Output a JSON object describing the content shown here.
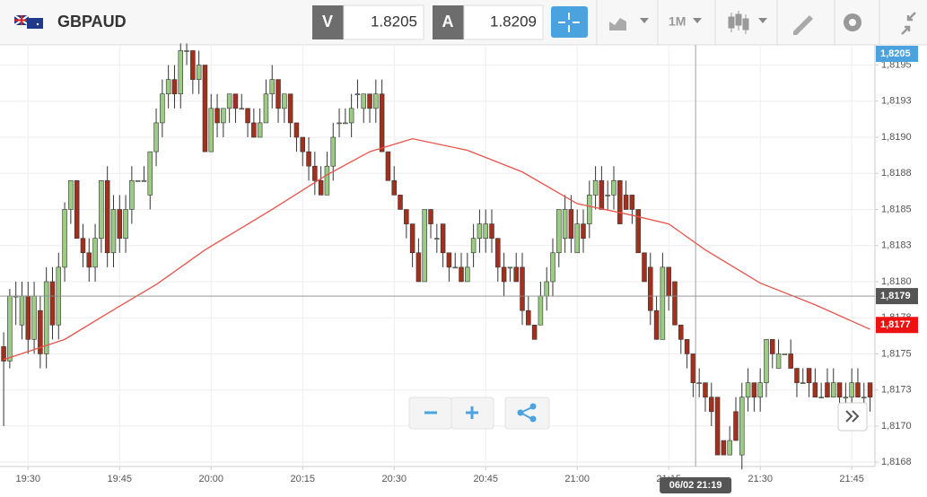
{
  "toolbar": {
    "symbol": "GBPAUD",
    "bid_tag": "V",
    "bid": 1.8205,
    "ask_tag": "A",
    "ask": 1.8209,
    "timeframe": "1M"
  },
  "chart_data": {
    "type": "candlestick",
    "up_color": "#9ccc84",
    "down_color": "#a2301d",
    "xlim": [
      1165.4,
      1308.8
    ],
    "ylim": [
      1.81672,
      1.81964
    ],
    "grid": true,
    "xticks": [
      {
        "value": 1170,
        "label": "19:30"
      },
      {
        "value": 1185,
        "label": "19:45"
      },
      {
        "value": 1200,
        "label": "20:00"
      },
      {
        "value": 1215,
        "label": "20:15"
      },
      {
        "value": 1230,
        "label": "20:30"
      },
      {
        "value": 1245,
        "label": "20:45"
      },
      {
        "value": 1260,
        "label": "21:00"
      },
      {
        "value": 1275,
        "label": "21:15"
      },
      {
        "value": 1290,
        "label": "21:30"
      },
      {
        "value": 1305,
        "label": "21:45"
      }
    ],
    "yticks": [
      {
        "value": 1.8195,
        "label": "1,8195"
      },
      {
        "value": 1.81925,
        "label": "1,8193"
      },
      {
        "value": 1.819,
        "label": "1,8190"
      },
      {
        "value": 1.81875,
        "label": "1,8188"
      },
      {
        "value": 1.8185,
        "label": "1,8185"
      },
      {
        "value": 1.81825,
        "label": "1,8183"
      },
      {
        "value": 1.818,
        "label": "1,8180"
      },
      {
        "value": 1.81775,
        "label": "1,8178"
      },
      {
        "value": 1.8175,
        "label": "1,8175"
      },
      {
        "value": 1.81725,
        "label": "1,8173"
      },
      {
        "value": 1.817,
        "label": "1,8170"
      },
      {
        "value": 1.81675,
        "label": "1,8168"
      }
    ],
    "x": [
      1166,
      1167,
      1168,
      1169,
      1170,
      1171,
      1172,
      1173,
      1174,
      1175,
      1176,
      1177,
      1178,
      1179,
      1180,
      1181,
      1182,
      1183,
      1184,
      1185,
      1186,
      1187,
      1188,
      1189,
      1190,
      1191,
      1192,
      1193,
      1194,
      1195,
      1196,
      1197,
      1198,
      1199,
      1200,
      1201,
      1202,
      1203,
      1204,
      1205,
      1206,
      1207,
      1208,
      1209,
      1210,
      1211,
      1212,
      1213,
      1214,
      1215,
      1216,
      1217,
      1218,
      1219,
      1220,
      1221,
      1222,
      1223,
      1224,
      1225,
      1226,
      1227,
      1228,
      1229,
      1230,
      1231,
      1232,
      1233,
      1234,
      1235,
      1236,
      1237,
      1238,
      1239,
      1240,
      1241,
      1242,
      1243,
      1244,
      1245,
      1246,
      1247,
      1248,
      1249,
      1250,
      1251,
      1252,
      1253,
      1254,
      1255,
      1256,
      1257,
      1258,
      1259,
      1260,
      1261,
      1262,
      1263,
      1264,
      1265,
      1266,
      1267,
      1268,
      1269,
      1270,
      1271,
      1272,
      1273,
      1274,
      1275,
      1276,
      1277,
      1278,
      1279,
      1280,
      1281,
      1282,
      1283,
      1284,
      1285,
      1286,
      1287,
      1288,
      1289,
      1290,
      1291,
      1292,
      1293,
      1294,
      1295,
      1296,
      1297,
      1298,
      1299,
      1300,
      1301,
      1302,
      1303,
      1304,
      1305,
      1306,
      1307,
      1308
    ],
    "candles": [
      [
        1.81755,
        1.81765,
        1.817,
        1.81745
      ],
      [
        1.81745,
        1.81795,
        1.8174,
        1.8179
      ],
      [
        1.8179,
        1.818,
        1.8177,
        1.8179
      ],
      [
        1.8177,
        1.818,
        1.8176,
        1.8179
      ],
      [
        1.8179,
        1.818,
        1.8175,
        1.8176
      ],
      [
        1.8176,
        1.818,
        1.8175,
        1.8179
      ],
      [
        1.8178,
        1.8179,
        1.8174,
        1.8175
      ],
      [
        1.8175,
        1.8181,
        1.8174,
        1.818
      ],
      [
        1.818,
        1.8181,
        1.8176,
        1.8177
      ],
      [
        1.8177,
        1.8182,
        1.8176,
        1.8181
      ],
      [
        1.8181,
        1.81855,
        1.818,
        1.8185
      ],
      [
        1.8185,
        1.8187,
        1.8184,
        1.8187
      ],
      [
        1.8187,
        1.8187,
        1.8183,
        1.8183
      ],
      [
        1.8183,
        1.8184,
        1.8181,
        1.8182
      ],
      [
        1.8182,
        1.8183,
        1.818,
        1.8181
      ],
      [
        1.8181,
        1.8184,
        1.818,
        1.8183
      ],
      [
        1.8183,
        1.8187,
        1.8182,
        1.8187
      ],
      [
        1.8187,
        1.8188,
        1.8181,
        1.8182
      ],
      [
        1.8182,
        1.8186,
        1.8181,
        1.8185
      ],
      [
        1.8185,
        1.8186,
        1.8182,
        1.8183
      ],
      [
        1.8183,
        1.8186,
        1.8182,
        1.8185
      ],
      [
        1.8185,
        1.8188,
        1.8184,
        1.8187
      ],
      [
        1.8187,
        1.8187,
        1.8187,
        1.8187
      ],
      [
        1.8187,
        1.8188,
        1.8187,
        1.8187
      ],
      [
        1.8186,
        1.8189,
        1.8185,
        1.8189
      ],
      [
        1.8189,
        1.8192,
        1.8188,
        1.8191
      ],
      [
        1.8191,
        1.8194,
        1.819,
        1.8193
      ],
      [
        1.8193,
        1.8195,
        1.8192,
        1.8194
      ],
      [
        1.8194,
        1.8195,
        1.8192,
        1.8193
      ],
      [
        1.8193,
        1.81965,
        1.8192,
        1.8196
      ],
      [
        1.8196,
        1.81965,
        1.8195,
        1.8196
      ],
      [
        1.8196,
        1.8196,
        1.8193,
        1.8194
      ],
      [
        1.8194,
        1.8196,
        1.8193,
        1.8195
      ],
      [
        1.8195,
        1.8195,
        1.8189,
        1.8189
      ],
      [
        1.8189,
        1.8193,
        1.8189,
        1.8192
      ],
      [
        1.8192,
        1.8193,
        1.819,
        1.8191
      ],
      [
        1.8191,
        1.8192,
        1.819,
        1.8192
      ],
      [
        1.8192,
        1.8193,
        1.8191,
        1.8193
      ],
      [
        1.8193,
        1.8193,
        1.8191,
        1.8192
      ],
      [
        1.8192,
        1.8193,
        1.8192,
        1.8192
      ],
      [
        1.8192,
        1.8192,
        1.819,
        1.8191
      ],
      [
        1.8191,
        1.8192,
        1.819,
        1.819
      ],
      [
        1.819,
        1.8192,
        1.819,
        1.8191
      ],
      [
        1.8191,
        1.8194,
        1.8191,
        1.8193
      ],
      [
        1.8193,
        1.8195,
        1.8192,
        1.8194
      ],
      [
        1.8194,
        1.8194,
        1.8191,
        1.8192
      ],
      [
        1.8192,
        1.8193,
        1.8191,
        1.8193
      ],
      [
        1.8193,
        1.8193,
        1.819,
        1.8191
      ],
      [
        1.8191,
        1.8191,
        1.8189,
        1.819
      ],
      [
        1.819,
        1.819,
        1.8188,
        1.8189
      ],
      [
        1.8189,
        1.819,
        1.8187,
        1.8188
      ],
      [
        1.8188,
        1.8189,
        1.8186,
        1.8187
      ],
      [
        1.8187,
        1.8188,
        1.8186,
        1.8186
      ],
      [
        1.8186,
        1.8189,
        1.8186,
        1.8188
      ],
      [
        1.8188,
        1.8191,
        1.8187,
        1.819
      ],
      [
        1.8191,
        1.8192,
        1.819,
        1.8191
      ],
      [
        1.8191,
        1.8192,
        1.8191,
        1.8191
      ],
      [
        1.8191,
        1.8193,
        1.819,
        1.8192
      ],
      [
        1.8193,
        1.8194,
        1.8192,
        1.8193
      ],
      [
        1.8192,
        1.8193,
        1.8191,
        1.8193
      ],
      [
        1.8193,
        1.8193,
        1.8191,
        1.8192
      ],
      [
        1.8192,
        1.8194,
        1.8191,
        1.8193
      ],
      [
        1.8193,
        1.8194,
        1.8189,
        1.8189
      ],
      [
        1.8189,
        1.8189,
        1.8187,
        1.8187
      ],
      [
        1.8187,
        1.8188,
        1.8186,
        1.8186
      ],
      [
        1.8186,
        1.8186,
        1.8185,
        1.8185
      ],
      [
        1.8185,
        1.8185,
        1.8183,
        1.8184
      ],
      [
        1.8184,
        1.8184,
        1.8181,
        1.8182
      ],
      [
        1.8182,
        1.8183,
        1.818,
        1.818
      ],
      [
        1.818,
        1.8185,
        1.818,
        1.8185
      ],
      [
        1.8185,
        1.8185,
        1.8183,
        1.8184
      ],
      [
        1.8183,
        1.8184,
        1.8182,
        1.8183
      ],
      [
        1.8184,
        1.8184,
        1.8181,
        1.8182
      ],
      [
        1.8182,
        1.8182,
        1.818,
        1.8181
      ],
      [
        1.8181,
        1.8182,
        1.8181,
        1.8181
      ],
      [
        1.8181,
        1.8182,
        1.818,
        1.818
      ],
      [
        1.818,
        1.8182,
        1.818,
        1.8181
      ],
      [
        1.8182,
        1.8184,
        1.8181,
        1.8183
      ],
      [
        1.8183,
        1.8185,
        1.8182,
        1.8184
      ],
      [
        1.8183,
        1.8185,
        1.8182,
        1.8184
      ],
      [
        1.8184,
        1.8185,
        1.8182,
        1.8183
      ],
      [
        1.8183,
        1.8183,
        1.818,
        1.8181
      ],
      [
        1.8181,
        1.8182,
        1.8179,
        1.818
      ],
      [
        1.8181,
        1.8181,
        1.818,
        1.8181
      ],
      [
        1.8181,
        1.8182,
        1.818,
        1.818
      ],
      [
        1.8181,
        1.8182,
        1.8177,
        1.8178
      ],
      [
        1.8178,
        1.8179,
        1.8177,
        1.8177
      ],
      [
        1.8177,
        1.8177,
        1.8176,
        1.8176
      ],
      [
        1.8177,
        1.818,
        1.8177,
        1.8179
      ],
      [
        1.8179,
        1.8181,
        1.8178,
        1.818
      ],
      [
        1.818,
        1.8183,
        1.8179,
        1.8182
      ],
      [
        1.8182,
        1.8185,
        1.8181,
        1.8185
      ],
      [
        1.8183,
        1.8186,
        1.8182,
        1.8185
      ],
      [
        1.8185,
        1.8186,
        1.8182,
        1.8183
      ],
      [
        1.8182,
        1.8185,
        1.8182,
        1.8184
      ],
      [
        1.8184,
        1.8185,
        1.8182,
        1.8183
      ],
      [
        1.8184,
        1.8187,
        1.8183,
        1.8186
      ],
      [
        1.8186,
        1.8188,
        1.8185,
        1.8187
      ],
      [
        1.8187,
        1.8188,
        1.8185,
        1.8185
      ],
      [
        1.8186,
        1.8187,
        1.8185,
        1.8186
      ],
      [
        1.8186,
        1.8188,
        1.8185,
        1.8187
      ],
      [
        1.8187,
        1.8187,
        1.8184,
        1.8184
      ],
      [
        1.8186,
        1.8187,
        1.8185,
        1.8185
      ],
      [
        1.8186,
        1.8186,
        1.8184,
        1.8185
      ],
      [
        1.8185,
        1.8185,
        1.8182,
        1.8182
      ],
      [
        1.8182,
        1.8182,
        1.818,
        1.818
      ],
      [
        1.8181,
        1.8182,
        1.8177,
        1.8178
      ],
      [
        1.8178,
        1.8179,
        1.8176,
        1.8176
      ],
      [
        1.8176,
        1.8182,
        1.8176,
        1.8181
      ],
      [
        1.8181,
        1.8181,
        1.8178,
        1.8179
      ],
      [
        1.818,
        1.818,
        1.8177,
        1.8177
      ],
      [
        1.8177,
        1.8177,
        1.8175,
        1.8176
      ],
      [
        1.8176,
        1.8176,
        1.8174,
        1.8175
      ],
      [
        1.8175,
        1.8175,
        1.8172,
        1.8173
      ],
      [
        1.8173,
        1.8174,
        1.8172,
        1.8173
      ],
      [
        1.8173,
        1.8173,
        1.8171,
        1.8172
      ],
      [
        1.8172,
        1.8173,
        1.817,
        1.8171
      ],
      [
        1.8172,
        1.8172,
        1.8168,
        1.8168
      ],
      [
        1.8169,
        1.8169,
        1.8168,
        1.8168
      ],
      [
        1.8168,
        1.817,
        1.8168,
        1.8169
      ],
      [
        1.8171,
        1.8172,
        1.8169,
        1.8169
      ],
      [
        1.8168,
        1.8173,
        1.8167,
        1.8172
      ],
      [
        1.8172,
        1.8174,
        1.8171,
        1.8173
      ],
      [
        1.8173,
        1.8173,
        1.8171,
        1.8172
      ],
      [
        1.8172,
        1.8174,
        1.8171,
        1.8173
      ],
      [
        1.8173,
        1.8176,
        1.8172,
        1.8176
      ],
      [
        1.8176,
        1.8176,
        1.8174,
        1.8175
      ],
      [
        1.8174,
        1.8176,
        1.8174,
        1.8175
      ],
      [
        1.8175,
        1.8175,
        1.8175,
        1.8175
      ],
      [
        1.8175,
        1.8176,
        1.8174,
        1.8174
      ],
      [
        1.8174,
        1.8174,
        1.8172,
        1.8173
      ],
      [
        1.8173,
        1.8174,
        1.8173,
        1.8173
      ],
      [
        1.8174,
        1.8174,
        1.8172,
        1.8173
      ],
      [
        1.8173,
        1.8174,
        1.8172,
        1.8172
      ],
      [
        1.8172,
        1.8173,
        1.8172,
        1.8172
      ],
      [
        1.8173,
        1.8174,
        1.8172,
        1.8172
      ],
      [
        1.8172,
        1.8174,
        1.8172,
        1.8173
      ],
      [
        1.8173,
        1.8173,
        1.8171,
        1.8172
      ],
      [
        1.8172,
        1.8173,
        1.8171,
        1.8172
      ],
      [
        1.8172,
        1.8174,
        1.8171,
        1.8173
      ],
      [
        1.8173,
        1.8174,
        1.8172,
        1.8172
      ],
      [
        1.8172,
        1.8173,
        1.8171,
        1.8172
      ],
      [
        1.8173,
        1.8173,
        1.8171,
        1.8172
      ]
    ],
    "ma": {
      "color": "#e8534a",
      "x": [
        1166,
        1176,
        1183,
        1191,
        1199,
        1210,
        1219,
        1226,
        1233,
        1242,
        1251,
        1260,
        1269,
        1275,
        1281,
        1290,
        1299,
        1308
      ],
      "values": [
        1.81746,
        1.8176,
        1.81778,
        1.81798,
        1.81822,
        1.8185,
        1.81874,
        1.8189,
        1.81899,
        1.81891,
        1.81876,
        1.81854,
        1.81846,
        1.8184,
        1.81822,
        1.81799,
        1.81784,
        1.81767
      ]
    },
    "price_labels": [
      {
        "value": 1.8205,
        "label": "1,8205",
        "color": "#4aa3df"
      },
      {
        "value": 1.8179,
        "label": "1,8179",
        "color": "#555555"
      },
      {
        "value": 1.8177,
        "label": "1,8177",
        "color": "#ee1111"
      }
    ],
    "crosshair": {
      "x": {
        "value": 1279.4,
        "label": "06/02 21:19"
      },
      "y": 1.8179
    }
  }
}
